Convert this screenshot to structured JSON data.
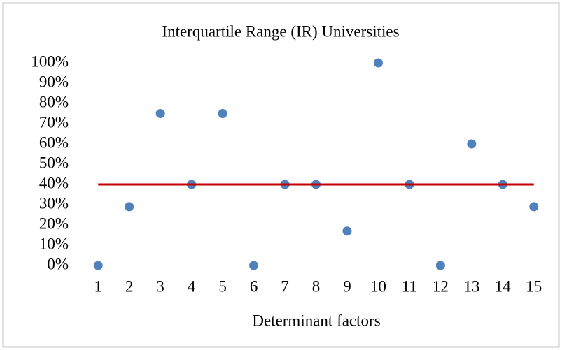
{
  "chart_data": {
    "type": "scatter",
    "title": "Interquartile Range (IR) Universities",
    "x_label": "Determinant factors",
    "x": [
      1,
      2,
      3,
      4,
      5,
      6,
      7,
      8,
      9,
      10,
      11,
      12,
      13,
      14,
      15
    ],
    "series": [
      {
        "type": "scatter",
        "color": "#4f81bd",
        "values": [
          0,
          29,
          75,
          40,
          75,
          0,
          40,
          40,
          17,
          100,
          40,
          0,
          60,
          40,
          29
        ]
      },
      {
        "type": "line",
        "color": "#c00000",
        "values": [
          40,
          40,
          40,
          40,
          40,
          40,
          40,
          40,
          40,
          40,
          40,
          40,
          40,
          40,
          40
        ]
      }
    ],
    "xlim": [
      0.5,
      15.5
    ],
    "xticks": [
      1,
      2,
      3,
      4,
      5,
      6,
      7,
      8,
      9,
      10,
      11,
      12,
      13,
      14,
      15
    ],
    "ylim": [
      0,
      100
    ],
    "yticks": [
      {
        "value": 0,
        "label": "0%"
      },
      {
        "value": 10,
        "label": "10%"
      },
      {
        "value": 20,
        "label": "20%"
      },
      {
        "value": 30,
        "label": "30%"
      },
      {
        "value": 40,
        "label": "40%"
      },
      {
        "value": 50,
        "label": "50%"
      },
      {
        "value": 60,
        "label": "60%"
      },
      {
        "value": 70,
        "label": "70%"
      },
      {
        "value": 80,
        "label": "80%"
      },
      {
        "value": 90,
        "label": "90%"
      },
      {
        "value": 100,
        "label": "100%"
      }
    ],
    "grid": false
  }
}
